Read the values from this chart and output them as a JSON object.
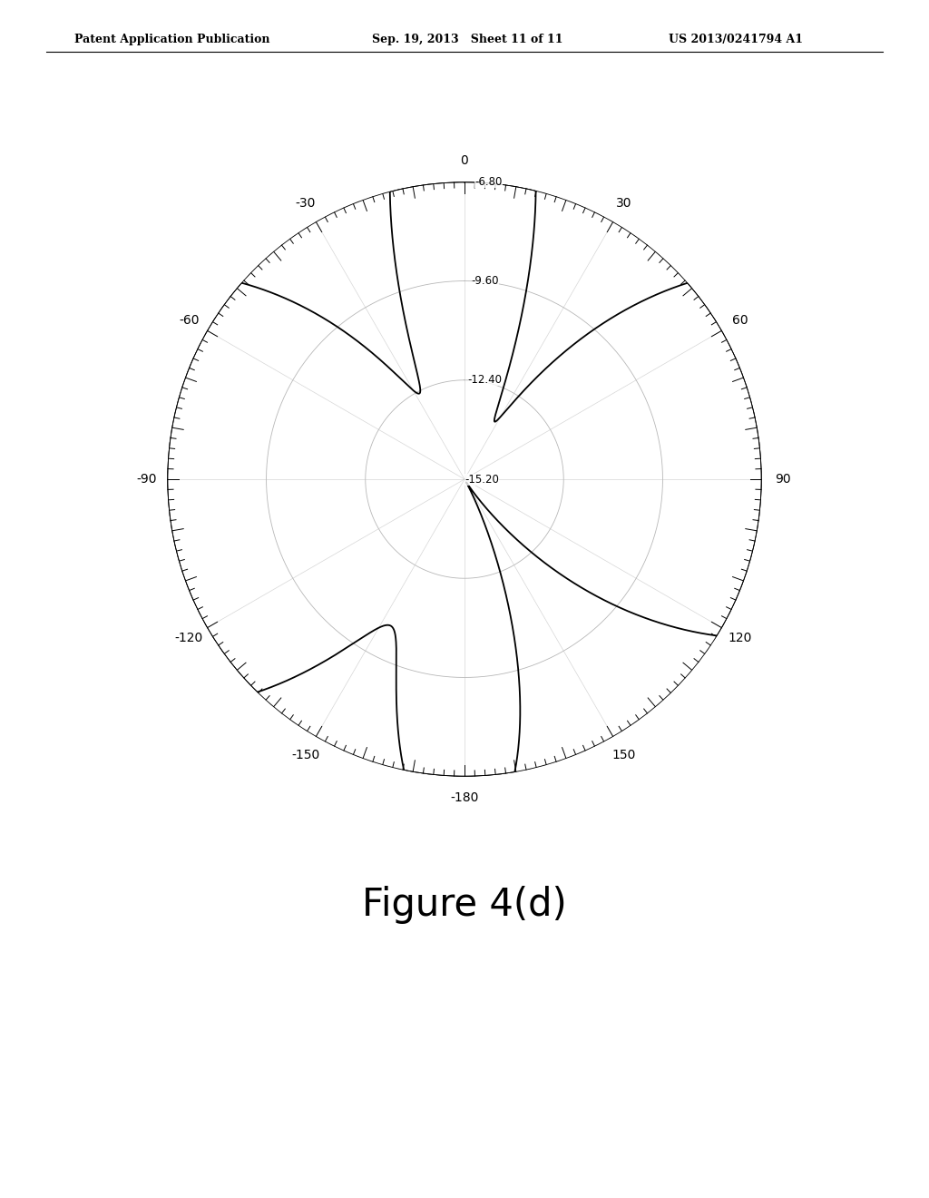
{
  "title": "Figure 4(d)",
  "header_left": "Patent Application Publication",
  "header_center": "Sep. 19, 2013   Sheet 11 of 11",
  "header_right": "US 2013/0241794 A1",
  "radial_labels": [
    "-6.80",
    "-9.60",
    "-12.40",
    "-15.20"
  ],
  "radial_values": [
    -6.8,
    -9.6,
    -12.4,
    -15.2
  ],
  "r_max": -6.8,
  "r_min": -15.2,
  "angle_labels": [
    "0",
    "30",
    "60",
    "90",
    "120",
    "150",
    "-180",
    "-150",
    "-120",
    "-90",
    "-60",
    "-30"
  ],
  "angle_values": [
    0,
    30,
    60,
    90,
    120,
    150,
    180,
    210,
    240,
    270,
    300,
    330
  ],
  "background_color": "#ffffff",
  "line_color": "#000000",
  "grid_color": "#aaaaaa",
  "figure_label_fontsize": 30,
  "tick_label_fontsize": 10,
  "radial_label_fontsize": 8.5,
  "header_fontsize": 9
}
